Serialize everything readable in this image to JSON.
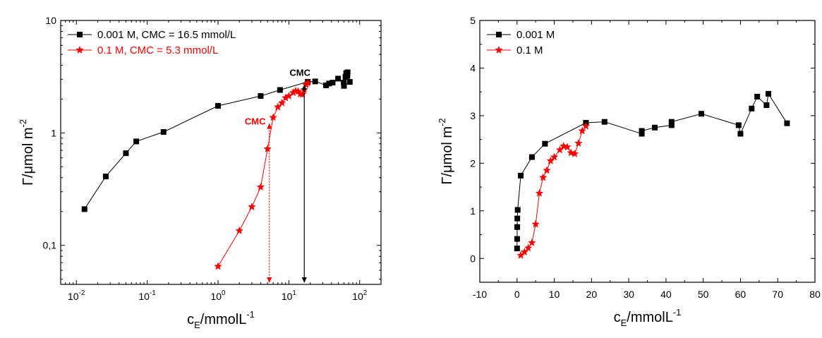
{
  "chart_data": [
    {
      "type": "line",
      "xlabel_main": "c",
      "xlabel_sub": "E",
      "xlabel_unit": "/mmolL",
      "xlabel_sup": "-1",
      "ylabel_main": "Γ/μmol m",
      "ylabel_sup": "-2",
      "xscale": "log",
      "yscale": "log",
      "xlim": [
        0.006,
        200
      ],
      "ylim": [
        0.045,
        10
      ],
      "xticks": [
        {
          "value": 0.01,
          "base": "10",
          "exp": "-2"
        },
        {
          "value": 0.1,
          "base": "10",
          "exp": "-1"
        },
        {
          "value": 1,
          "base": "10",
          "exp": "0"
        },
        {
          "value": 10,
          "base": "10",
          "exp": "1"
        },
        {
          "value": 100,
          "base": "10",
          "exp": "2"
        }
      ],
      "yticks": [
        {
          "value": 0.1,
          "label": "0,1"
        },
        {
          "value": 1,
          "label": "1"
        },
        {
          "value": 10,
          "label": "10"
        }
      ],
      "legend_position": "top-left",
      "series": [
        {
          "name": "0.001 M, CMC = 16.5 mmol/L",
          "color": "#000000",
          "marker": "square",
          "x": [
            0.013,
            0.026,
            0.05,
            0.07,
            0.17,
            1.0,
            4.0,
            7.5,
            18.5,
            23.5,
            33.5,
            37,
            41.5,
            49.5,
            59.5,
            60,
            63,
            64.5,
            67,
            67.5,
            72.5
          ],
          "y": [
            0.21,
            0.41,
            0.66,
            0.84,
            1.02,
            1.74,
            2.13,
            2.41,
            2.85,
            2.87,
            2.65,
            2.75,
            2.8,
            3.04,
            2.8,
            2.62,
            3.15,
            3.4,
            3.22,
            3.46,
            2.84
          ]
        },
        {
          "name": "0.1 M, CMC = 5.3 mmol/L",
          "color": "#ff0000",
          "marker": "star",
          "x": [
            1.0,
            2.0,
            3.0,
            4.0,
            5.0,
            6.0,
            7.0,
            8.0,
            9.0,
            10.0,
            11.5,
            12.5,
            13.5,
            14.5,
            15.5,
            16.5,
            17.5,
            18.5
          ],
          "y": [
            0.065,
            0.135,
            0.22,
            0.33,
            0.72,
            1.37,
            1.7,
            1.85,
            2.05,
            2.13,
            2.28,
            2.36,
            2.34,
            2.22,
            2.2,
            2.42,
            2.68,
            2.78
          ]
        }
      ],
      "annotations": [
        {
          "text": "CMC",
          "color": "#000000",
          "x": 16.5,
          "y": 2.7
        },
        {
          "text": "CMC",
          "color": "#ff0000",
          "x": 5.3,
          "y": 1.22
        }
      ]
    },
    {
      "type": "line",
      "xlabel_main": "c",
      "xlabel_sub": "E",
      "xlabel_unit": "/mmolL",
      "xlabel_sup": "-1",
      "ylabel_main": "Γ/μmol m",
      "ylabel_sup": "-2",
      "xlim": [
        -10,
        80
      ],
      "ylim": [
        -0.5,
        5
      ],
      "xticks": [
        -10,
        0,
        10,
        20,
        30,
        40,
        50,
        60,
        70,
        80
      ],
      "yticks": [
        0,
        1,
        2,
        3,
        4,
        5
      ],
      "legend_position": "top-left",
      "series": [
        {
          "name": "0.001 M",
          "color": "#000000",
          "marker": "square",
          "x": [
            0.013,
            0.026,
            0.05,
            0.07,
            0.17,
            1.0,
            4.0,
            7.5,
            18.5,
            23.5,
            33.5,
            33.5,
            37,
            41.5,
            41.5,
            49.5,
            59.5,
            60,
            63,
            64.5,
            67,
            67.5,
            72.5
          ],
          "y": [
            0.21,
            0.41,
            0.66,
            0.84,
            1.02,
            1.74,
            2.13,
            2.41,
            2.85,
            2.87,
            2.62,
            2.68,
            2.75,
            2.8,
            2.87,
            3.04,
            2.8,
            2.62,
            3.15,
            3.4,
            3.22,
            3.46,
            2.84
          ]
        },
        {
          "name": "0.1 M",
          "color": "#ff0000",
          "marker": "star",
          "x": [
            1.0,
            2.0,
            3.0,
            4.0,
            5.0,
            6.0,
            7.0,
            8.0,
            9.0,
            10.0,
            11.5,
            12.5,
            13.5,
            14.5,
            15.5,
            16.5,
            17.5,
            18.5
          ],
          "y": [
            0.065,
            0.135,
            0.22,
            0.33,
            0.72,
            1.37,
            1.7,
            1.85,
            2.05,
            2.13,
            2.28,
            2.36,
            2.34,
            2.22,
            2.2,
            2.42,
            2.68,
            2.78
          ]
        }
      ]
    }
  ]
}
